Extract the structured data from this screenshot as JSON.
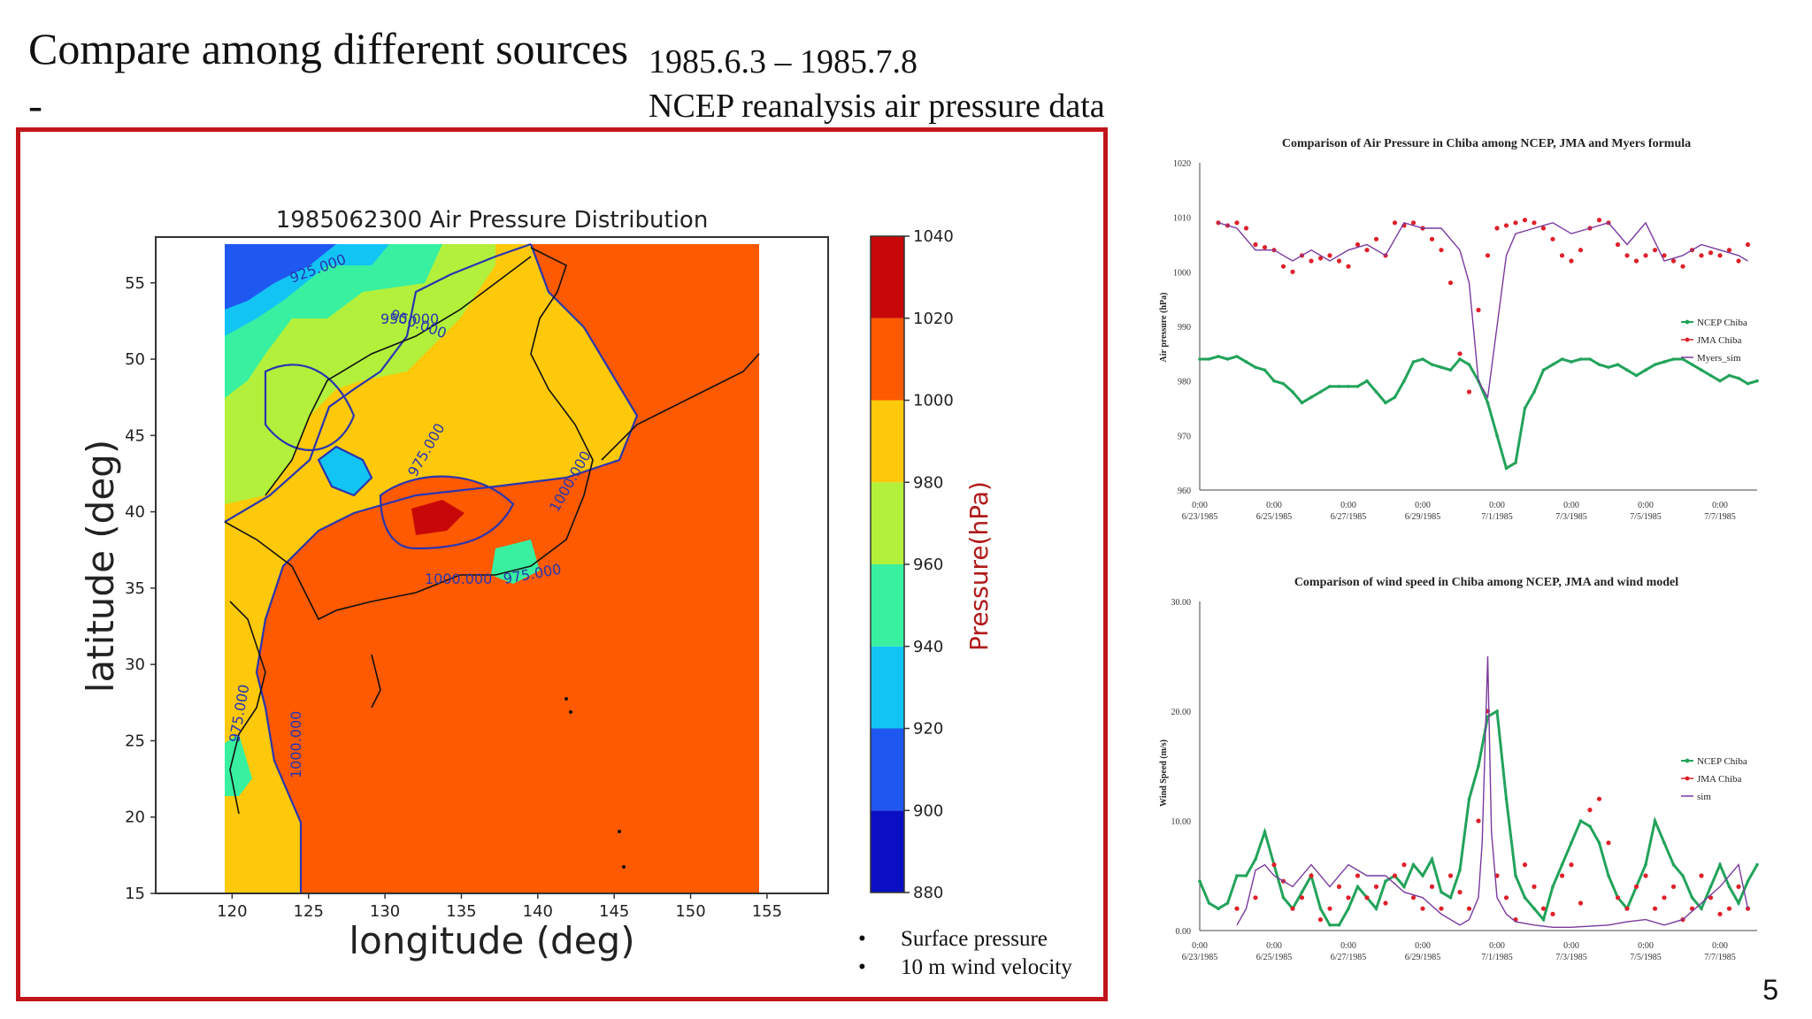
{
  "slide": {
    "title": "Compare among different sources",
    "dash": "-",
    "period": "1985.6.3 – 1985.7.8",
    "subtitle": "NCEP reanalysis air pressure data",
    "bullets": [
      "Surface pressure",
      "10 m wind velocity"
    ],
    "slide_number": "5"
  },
  "colors": {
    "frame": "#c2151b",
    "ncep": "#22a35a",
    "jma": "#e0202a",
    "sim": "#7a3a9e"
  },
  "chart_data": [
    {
      "type": "heatmap",
      "title": "1985062300 Air Pressure Distribution",
      "xlabel": "longitude (deg)",
      "ylabel": "latitude (deg)",
      "x_ticks": [
        "120",
        "125",
        "130",
        "135",
        "140",
        "145",
        "150",
        "155"
      ],
      "y_ticks": [
        "15",
        "20",
        "25",
        "30",
        "35",
        "40",
        "45",
        "50",
        "55"
      ],
      "xlim": [
        115,
        159
      ],
      "ylim": [
        15,
        58
      ],
      "colorbar": {
        "label": "Pressure(hPa)",
        "ticks": [
          "1040",
          "1020",
          "1000",
          "980",
          "960",
          "940",
          "920",
          "900",
          "880"
        ],
        "levels": [
          880,
          900,
          920,
          940,
          960,
          980,
          1000,
          1020,
          1040
        ],
        "colors": [
          "#0a0fc4",
          "#1f58f0",
          "#12c4f4",
          "#38f0a0",
          "#b2f03c",
          "#fdc90a",
          "#fd5a02",
          "#c80808"
        ]
      },
      "contour_labels": [
        "925.000",
        "950.000",
        "950.000",
        "975.000",
        "1000.000",
        "975.000",
        "1000.000",
        "975.000",
        "1000.000"
      ]
    },
    {
      "type": "line",
      "title": "Comparison of Air Pressure in Chiba among NCEP, JMA and Myers formula",
      "xlabel": "",
      "ylabel": "Air pressure (hPa)",
      "ylim": [
        960,
        1020
      ],
      "y_ticks": [
        "1020",
        "1010",
        "1000",
        "990",
        "980",
        "970",
        "960"
      ],
      "x_ticks": [
        "0:00 6/23/1985",
        "0:00 6/25/1985",
        "0:00 6/27/1985",
        "0:00 6/29/1985",
        "0:00 7/1/1985",
        "0:00 7/3/1985",
        "0:00 7/5/1985",
        "0:00 7/7/1985"
      ],
      "legend": "right",
      "series": [
        {
          "name": "NCEP Chiba",
          "x": [
            0,
            0.25,
            0.5,
            0.75,
            1,
            1.25,
            1.5,
            1.75,
            2,
            2.25,
            2.5,
            2.75,
            3,
            3.25,
            3.5,
            3.75,
            4,
            4.25,
            4.5,
            4.75,
            5,
            5.25,
            5.5,
            5.75,
            6,
            6.25,
            6.5,
            6.75,
            7,
            7.25,
            7.5,
            7.75,
            8,
            8.25,
            8.5,
            8.75,
            9,
            9.25,
            9.5,
            9.75,
            10,
            10.25,
            10.5,
            10.75,
            11,
            11.25,
            11.5,
            11.75,
            12,
            12.25,
            12.5,
            12.75,
            13,
            13.25,
            13.5,
            13.75,
            14,
            14.25,
            14.5,
            14.75,
            15
          ],
          "values": [
            984,
            984,
            984.5,
            984,
            984.5,
            983.5,
            982.5,
            982,
            980,
            979.5,
            978,
            976,
            977,
            978,
            979,
            979,
            979,
            979,
            980,
            978,
            976,
            977,
            980,
            983.5,
            984,
            983,
            982.5,
            982,
            984,
            983,
            980,
            976,
            970,
            964,
            965,
            975,
            978,
            982,
            983,
            984,
            983.5,
            984,
            984,
            983,
            982.5,
            983,
            982,
            981,
            982,
            983,
            983.5,
            984,
            984,
            983,
            982,
            981,
            980,
            981,
            980.5,
            979.5,
            980
          ]
        },
        {
          "name": "JMA Chiba",
          "x": [
            0.5,
            0.75,
            1,
            1.25,
            1.5,
            1.75,
            2,
            2.25,
            2.5,
            2.75,
            3,
            3.25,
            3.5,
            3.75,
            4,
            4.25,
            4.5,
            4.75,
            5,
            5.25,
            5.5,
            5.75,
            6,
            6.25,
            6.5,
            6.75,
            7,
            7.25,
            7.5,
            7.75,
            8,
            8.25,
            8.5,
            8.75,
            9,
            9.25,
            9.5,
            9.75,
            10,
            10.25,
            10.5,
            10.75,
            11,
            11.25,
            11.5,
            11.75,
            12,
            12.25,
            12.5,
            12.75,
            13,
            13.25,
            13.5,
            13.75,
            14,
            14.25,
            14.5,
            14.75
          ],
          "values": [
            1009,
            1008.5,
            1009,
            1008,
            1005,
            1004.5,
            1004,
            1001,
            1000,
            1003,
            1002,
            1002.5,
            1003,
            1002,
            1001,
            1005,
            1004,
            1006,
            1003,
            1009,
            1008.5,
            1009,
            1008,
            1006,
            1004,
            998,
            985,
            978,
            993,
            1003,
            1008,
            1008.5,
            1009,
            1009.5,
            1009,
            1008,
            1006,
            1003,
            1002,
            1004,
            1008,
            1009.5,
            1009,
            1005,
            1003,
            1002,
            1003,
            1004,
            1003,
            1002,
            1001,
            1004,
            1003,
            1003.5,
            1003,
            1004,
            1002,
            1005
          ]
        },
        {
          "name": "Myers_sim",
          "x": [
            0.5,
            1,
            1.5,
            2,
            2.5,
            3,
            3.5,
            4,
            4.5,
            5,
            5.5,
            6,
            6.5,
            7,
            7.25,
            7.5,
            7.75,
            8,
            8.25,
            8.5,
            9,
            9.5,
            10,
            10.5,
            11,
            11.5,
            12,
            12.5,
            13,
            13.5,
            14,
            14.5,
            14.75
          ],
          "values": [
            1009,
            1008,
            1004,
            1004,
            1002,
            1004,
            1002,
            1004,
            1005,
            1003,
            1009,
            1008,
            1008,
            1004,
            998,
            980,
            977,
            990,
            1003,
            1007,
            1008,
            1009,
            1007,
            1008,
            1009,
            1005,
            1009,
            1002,
            1003,
            1005,
            1004,
            1003,
            1002
          ]
        }
      ]
    },
    {
      "type": "line",
      "title": "Comparison of wind speed in Chiba among NCEP, JMA and wind model",
      "xlabel": "",
      "ylabel": "Wind Speed (m/s)",
      "ylim": [
        0,
        30
      ],
      "y_ticks": [
        "30.00",
        "20.00",
        "10.00",
        "0.00"
      ],
      "x_ticks": [
        "0:00 6/23/1985",
        "0:00 6/25/1985",
        "0:00 6/27/1985",
        "0:00 6/29/1985",
        "0:00 7/1/1985",
        "0:00 7/3/1985",
        "0:00 7/5/1985",
        "0:00 7/7/1985"
      ],
      "legend": "right",
      "series": [
        {
          "name": "NCEP Chiba",
          "x": [
            0,
            0.25,
            0.5,
            0.75,
            1,
            1.25,
            1.5,
            1.75,
            2,
            2.25,
            2.5,
            2.75,
            3,
            3.25,
            3.5,
            3.75,
            4,
            4.25,
            4.5,
            4.75,
            5,
            5.25,
            5.5,
            5.75,
            6,
            6.25,
            6.5,
            6.75,
            7,
            7.25,
            7.5,
            7.75,
            8,
            8.25,
            8.5,
            8.75,
            9,
            9.25,
            9.5,
            9.75,
            10,
            10.25,
            10.5,
            10.75,
            11,
            11.25,
            11.5,
            11.75,
            12,
            12.25,
            12.5,
            12.75,
            13,
            13.25,
            13.5,
            13.75,
            14,
            14.25,
            14.5,
            14.75,
            15
          ],
          "values": [
            4.5,
            2.5,
            2,
            2.5,
            5,
            5,
            6.5,
            9,
            6,
            3,
            2,
            3.5,
            5,
            2,
            0.5,
            0.5,
            2,
            4,
            3,
            2,
            4.5,
            5,
            4,
            6,
            5,
            6.5,
            3.5,
            3,
            5.5,
            12,
            15,
            19.5,
            20,
            12,
            5,
            3,
            2,
            1,
            4,
            6,
            8,
            10,
            9.5,
            8,
            5,
            3,
            2,
            4,
            6,
            10,
            8,
            6,
            5,
            3,
            2,
            4,
            6,
            4,
            2.5,
            4.5,
            6
          ]
        },
        {
          "name": "JMA Chiba",
          "x": [
            1,
            1.5,
            2,
            2.25,
            2.5,
            2.75,
            3,
            3.25,
            3.5,
            3.75,
            4,
            4.25,
            4.5,
            4.75,
            5,
            5.25,
            5.5,
            5.75,
            6,
            6.25,
            6.5,
            6.75,
            7,
            7.25,
            7.5,
            7.75,
            8,
            8.25,
            8.5,
            8.75,
            9,
            9.25,
            9.5,
            9.75,
            10,
            10.25,
            10.5,
            10.75,
            11,
            11.25,
            11.5,
            11.75,
            12,
            12.25,
            12.5,
            12.75,
            13,
            13.25,
            13.5,
            13.75,
            14,
            14.25,
            14.5,
            14.75
          ],
          "values": [
            2,
            3,
            6,
            4.5,
            2,
            3,
            5,
            1,
            2,
            4,
            3,
            5,
            3,
            4,
            2.5,
            5,
            6,
            3,
            2,
            4,
            2,
            5,
            3.5,
            2,
            10,
            20,
            5,
            3,
            1,
            6,
            4,
            2,
            1.5,
            5,
            6,
            2.5,
            11,
            12,
            8,
            3,
            2,
            4,
            5,
            2,
            3,
            4,
            1,
            2,
            5,
            3,
            1.5,
            2,
            4,
            2
          ]
        },
        {
          "name": "sim",
          "x": [
            1,
            1.25,
            1.5,
            1.75,
            2,
            2.5,
            3,
            3.5,
            4,
            4.5,
            5,
            5.5,
            6,
            6.5,
            7,
            7.25,
            7.5,
            7.6,
            7.75,
            7.85,
            8,
            8.25,
            8.5,
            9,
            9.5,
            10,
            10.5,
            11,
            11.5,
            12,
            12.5,
            13,
            13.5,
            14,
            14.5,
            14.75
          ],
          "values": [
            0.5,
            2,
            5.5,
            6,
            5,
            4,
            6,
            4,
            6,
            5,
            5,
            3.5,
            3,
            1.5,
            0.5,
            1,
            3,
            8,
            25,
            9,
            3,
            1.5,
            0.8,
            0.5,
            0.3,
            0.3,
            0.4,
            0.5,
            0.8,
            1,
            0.5,
            1,
            2.5,
            4,
            6,
            2
          ]
        }
      ]
    }
  ]
}
